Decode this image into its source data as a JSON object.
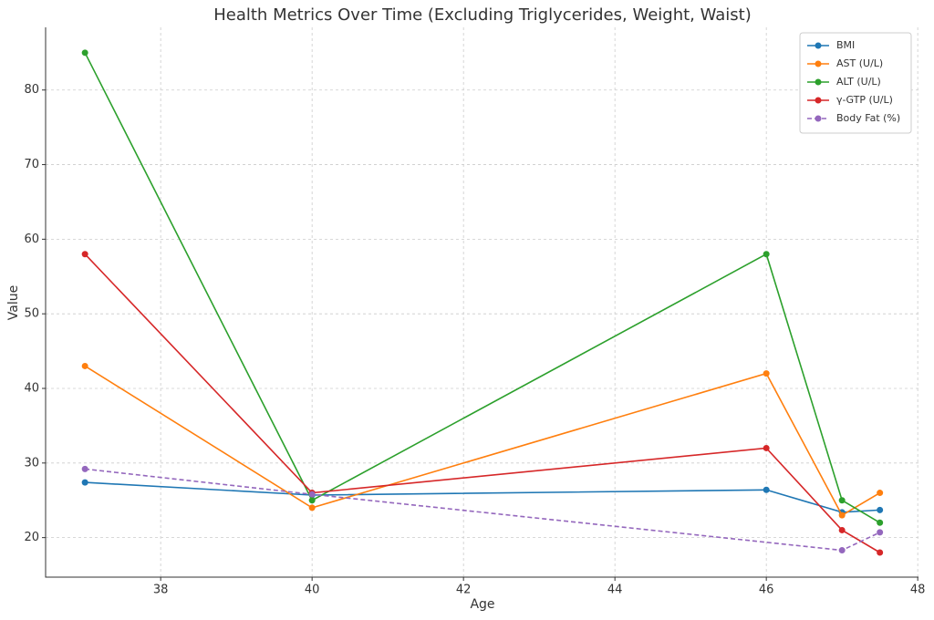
{
  "chart_data": {
    "type": "line",
    "title": "Health Metrics Over Time (Excluding Triglycerides, Weight, Waist)",
    "xlabel": "Age",
    "ylabel": "Value",
    "x": [
      37,
      40,
      46,
      47,
      47.5
    ],
    "series": [
      {
        "name": "BMI",
        "color": "#1f77b4",
        "values": [
          27.4,
          25.7,
          26.4,
          23.4,
          23.7
        ]
      },
      {
        "name": "AST (U/L)",
        "color": "#ff7f0e",
        "values": [
          43,
          24,
          42,
          23,
          26
        ]
      },
      {
        "name": "ALT (U/L)",
        "color": "#2ca02c",
        "values": [
          85,
          25,
          58,
          25,
          22
        ]
      },
      {
        "name": "γ-GTP (U/L)",
        "color": "#d62728",
        "values": [
          58,
          26,
          32,
          21,
          18
        ]
      },
      {
        "name": "Body Fat (%)",
        "color": "#9467bd",
        "dashed": true,
        "x": [
          37,
          40,
          47,
          47.5
        ],
        "values": [
          29.2,
          25.8,
          18.3,
          20.7
        ]
      }
    ],
    "xlim": [
      36.48,
      48.01
    ],
    "ylim": [
      14.7,
      88.4
    ],
    "xticks": [
      38,
      40,
      42,
      44,
      46,
      48
    ],
    "yticks": [
      20,
      30,
      40,
      50,
      60,
      70,
      80
    ],
    "grid": true,
    "legend": "upper right"
  }
}
